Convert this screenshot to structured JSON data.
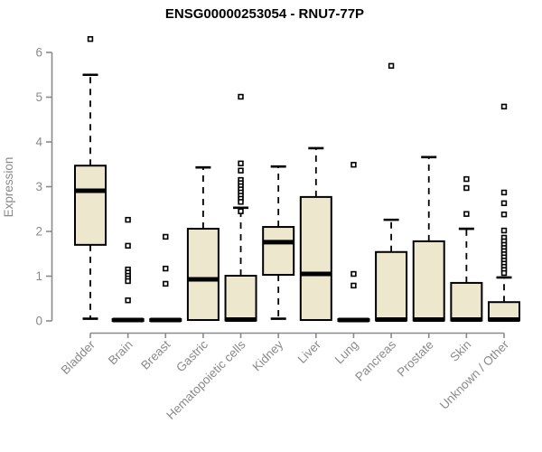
{
  "chart_data": {
    "type": "boxplot",
    "title": "ENSG00000253054 - RNU7-77P",
    "ylabel": "Expression",
    "xlabel": "",
    "ylim": [
      0,
      6.45
    ],
    "yticks": [
      0,
      1,
      2,
      3,
      4,
      5,
      6
    ],
    "grid": false,
    "legend": "none",
    "categories": [
      "Bladder",
      "Brain",
      "Breast",
      "Gastric",
      "Hematopoietic cells",
      "Kidney",
      "Liver",
      "Lung",
      "Pancreas",
      "Prostate",
      "Skin",
      "Unknown / Other"
    ],
    "series": [
      {
        "name": "Bladder",
        "low": 0.05,
        "q1": 1.7,
        "median": 2.91,
        "q3": 3.47,
        "high": 5.5,
        "outliers": [
          6.3
        ]
      },
      {
        "name": "Brain",
        "low": 0.0,
        "q1": 0.0,
        "median": 0.02,
        "q3": 0.04,
        "high": 0.04,
        "outliers": [
          2.26,
          1.68,
          1.15,
          1.08,
          1.01,
          0.95,
          0.89,
          0.46
        ]
      },
      {
        "name": "Breast",
        "low": 0.0,
        "q1": 0.0,
        "median": 0.02,
        "q3": 0.04,
        "high": 0.04,
        "outliers": [
          1.88,
          1.17,
          0.83
        ]
      },
      {
        "name": "Gastric",
        "low": 0.02,
        "q1": 0.02,
        "median": 0.93,
        "q3": 2.06,
        "high": 3.43,
        "outliers": []
      },
      {
        "name": "Hematopoietic cells",
        "low": 0.01,
        "q1": 0.01,
        "median": 0.03,
        "q3": 1.01,
        "high": 2.53,
        "outliers": [
          5.01,
          3.52,
          3.36,
          3.15,
          3.08,
          3.01,
          2.94,
          2.87,
          2.8,
          2.73,
          2.66,
          2.45
        ]
      },
      {
        "name": "Kidney",
        "low": 0.05,
        "q1": 1.03,
        "median": 1.76,
        "q3": 2.1,
        "high": 3.45,
        "outliers": []
      },
      {
        "name": "Liver",
        "low": 0.02,
        "q1": 0.02,
        "median": 1.05,
        "q3": 2.77,
        "high": 3.86,
        "outliers": []
      },
      {
        "name": "Lung",
        "low": 0.0,
        "q1": 0.0,
        "median": 0.02,
        "q3": 0.04,
        "high": 0.04,
        "outliers": [
          3.49,
          1.05,
          0.79
        ]
      },
      {
        "name": "Pancreas",
        "low": 0.01,
        "q1": 0.01,
        "median": 0.03,
        "q3": 1.54,
        "high": 2.26,
        "outliers": [
          5.7
        ]
      },
      {
        "name": "Prostate",
        "low": 0.01,
        "q1": 0.01,
        "median": 0.03,
        "q3": 1.78,
        "high": 3.66,
        "outliers": []
      },
      {
        "name": "Skin",
        "low": 0.01,
        "q1": 0.01,
        "median": 0.03,
        "q3": 0.85,
        "high": 2.06,
        "outliers": [
          3.17,
          2.97,
          2.39
        ]
      },
      {
        "name": "Unknown / Other",
        "low": 0.01,
        "q1": 0.01,
        "median": 0.03,
        "q3": 0.42,
        "high": 0.97,
        "outliers": [
          4.79,
          2.87,
          2.63,
          2.38,
          2.02,
          1.86,
          1.78,
          1.7,
          1.63,
          1.56,
          1.49,
          1.42,
          1.35,
          1.28,
          1.21,
          1.14,
          1.07
        ]
      }
    ],
    "colors": {
      "box_fill": "#EDE7CE",
      "box_border": "#000000",
      "median": "#000000",
      "whisker": "#000000",
      "outlier": "#000000",
      "axis": "#8A8A8A",
      "tick_label": "#8A8A8A",
      "title": "#000000",
      "background": "#FFFFFF"
    }
  }
}
